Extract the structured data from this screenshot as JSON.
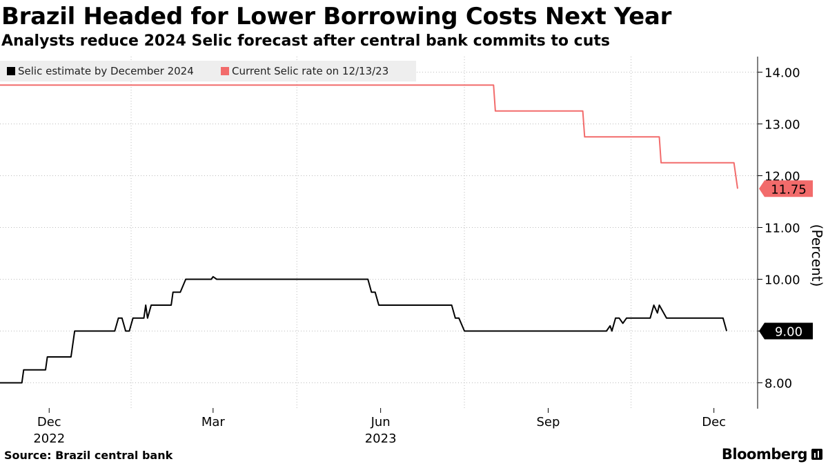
{
  "header": {
    "title": "Brazil Headed for Lower Borrowing Costs Next Year",
    "subtitle": "Analysts reduce 2024 Selic forecast after central bank commits to cuts"
  },
  "footer": {
    "source": "Source:  Brazil central bank",
    "brand": "Bloomberg",
    "brand_icon": "bloomberg-bars-icon"
  },
  "colors": {
    "estimate": "#000000",
    "current": "#f26b6b",
    "legend_bg": "#eeeeee",
    "grid": "#bbbbbb"
  },
  "chart_data": {
    "type": "line",
    "title": "Brazil Headed for Lower Borrowing Costs Next Year",
    "subtitle": "Analysts reduce 2024 Selic forecast after central bank commits to cuts",
    "ylabel": "(Percent)",
    "ylim": [
      7.5,
      14.3
    ],
    "xlim": [
      "2022-11-04",
      "2023-12-25"
    ],
    "y_ticks": [
      8,
      9,
      10,
      11,
      12,
      13,
      14
    ],
    "y_tick_labels": [
      "8.00",
      "9.00",
      "10.00",
      "11.00",
      "12.00",
      "13.00",
      "14.00"
    ],
    "x_ticks": [
      {
        "date": "2022-12-01",
        "label": "Dec",
        "year": "2022"
      },
      {
        "date": "2023-03-01",
        "label": "Mar",
        "year": ""
      },
      {
        "date": "2023-06-01",
        "label": "Jun",
        "year": "2023"
      },
      {
        "date": "2023-09-01",
        "label": "Sep",
        "year": ""
      },
      {
        "date": "2023-12-01",
        "label": "Dec",
        "year": ""
      }
    ],
    "grid": true,
    "legend_placement": "top-left",
    "series": [
      {
        "name": "Selic estimate by December 2024",
        "color": "#000000",
        "end_label": "9.00",
        "points": [
          [
            "2022-11-04",
            8.0
          ],
          [
            "2022-11-16",
            8.0
          ],
          [
            "2022-11-17",
            8.25
          ],
          [
            "2022-11-29",
            8.25
          ],
          [
            "2022-11-30",
            8.5
          ],
          [
            "2022-12-13",
            8.5
          ],
          [
            "2022-12-15",
            9.0
          ],
          [
            "2023-01-06",
            9.0
          ],
          [
            "2023-01-08",
            9.25
          ],
          [
            "2023-01-10",
            9.25
          ],
          [
            "2023-01-12",
            9.0
          ],
          [
            "2023-01-14",
            9.0
          ],
          [
            "2023-01-16",
            9.25
          ],
          [
            "2023-01-22",
            9.25
          ],
          [
            "2023-01-23",
            9.5
          ],
          [
            "2023-01-24",
            9.25
          ],
          [
            "2023-01-26",
            9.5
          ],
          [
            "2023-02-06",
            9.5
          ],
          [
            "2023-02-07",
            9.75
          ],
          [
            "2023-02-11",
            9.75
          ],
          [
            "2023-02-14",
            10.0
          ],
          [
            "2023-02-28",
            10.0
          ],
          [
            "2023-03-01",
            10.05
          ],
          [
            "2023-03-03",
            10.0
          ],
          [
            "2023-05-25",
            10.0
          ],
          [
            "2023-05-27",
            9.75
          ],
          [
            "2023-05-29",
            9.75
          ],
          [
            "2023-05-31",
            9.5
          ],
          [
            "2023-07-10",
            9.5
          ],
          [
            "2023-07-12",
            9.25
          ],
          [
            "2023-07-14",
            9.25
          ],
          [
            "2023-07-17",
            9.0
          ],
          [
            "2023-10-03",
            9.0
          ],
          [
            "2023-10-05",
            9.1
          ],
          [
            "2023-10-06",
            9.0
          ],
          [
            "2023-10-08",
            9.25
          ],
          [
            "2023-10-10",
            9.25
          ],
          [
            "2023-10-12",
            9.15
          ],
          [
            "2023-10-14",
            9.25
          ],
          [
            "2023-10-27",
            9.25
          ],
          [
            "2023-10-29",
            9.5
          ],
          [
            "2023-10-31",
            9.35
          ],
          [
            "2023-11-01",
            9.5
          ],
          [
            "2023-11-05",
            9.25
          ],
          [
            "2023-12-06",
            9.25
          ],
          [
            "2023-12-08",
            9.0
          ]
        ]
      },
      {
        "name": "Current Selic rate on 12/13/23",
        "color": "#f26b6b",
        "end_label": "11.75",
        "points": [
          [
            "2022-11-04",
            13.75
          ],
          [
            "2023-08-02",
            13.75
          ],
          [
            "2023-08-03",
            13.25
          ],
          [
            "2023-09-20",
            13.25
          ],
          [
            "2023-09-21",
            12.75
          ],
          [
            "2023-11-01",
            12.75
          ],
          [
            "2023-11-02",
            12.25
          ],
          [
            "2023-12-12",
            12.25
          ],
          [
            "2023-12-14",
            11.75
          ]
        ]
      }
    ]
  }
}
